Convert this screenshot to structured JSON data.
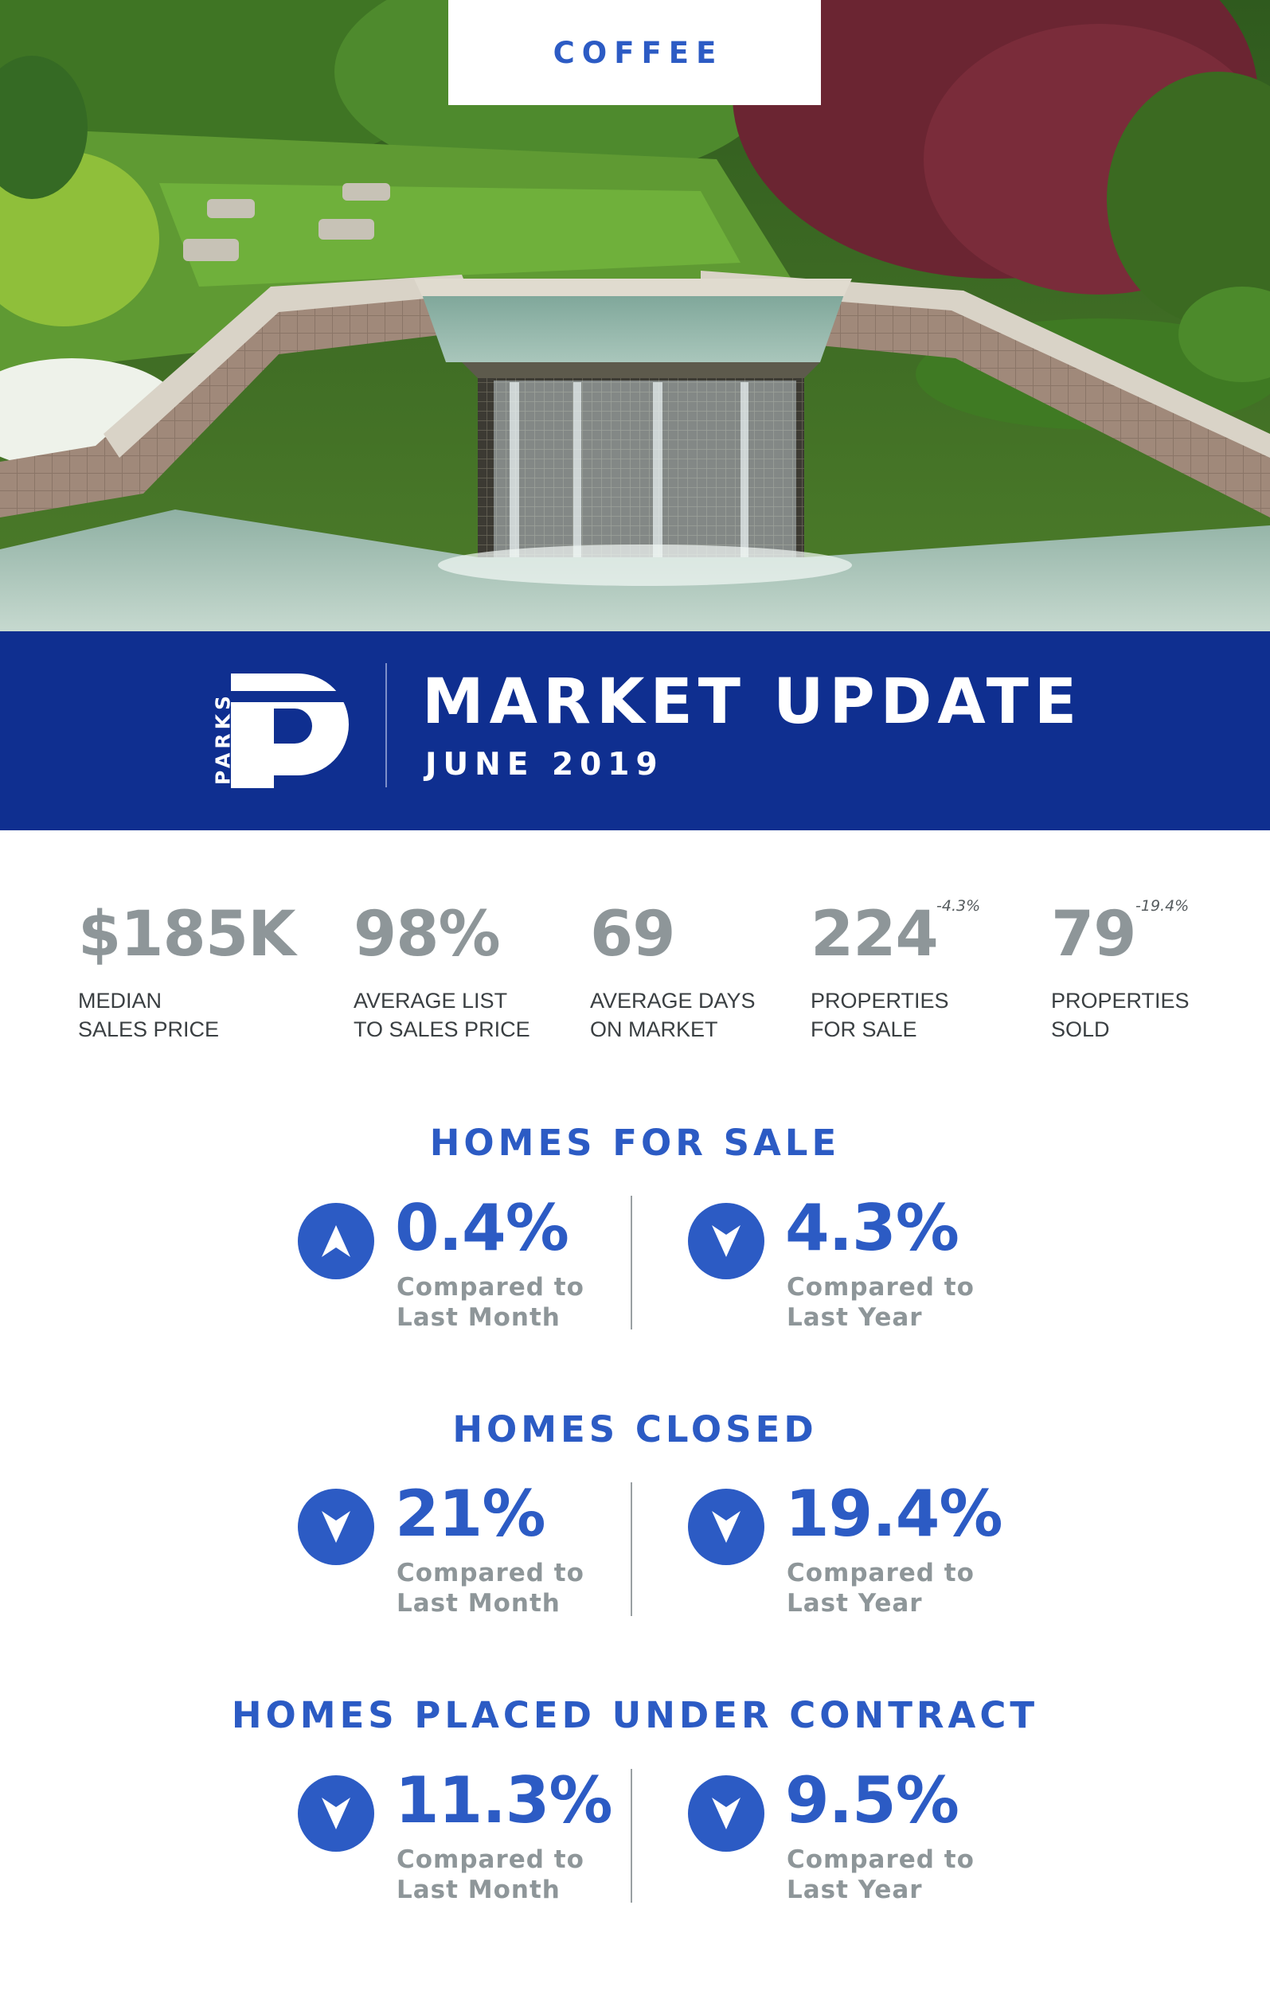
{
  "hero": {
    "region_label": "COFFEE"
  },
  "banner": {
    "brand": "PARKS",
    "title": "MARKET UPDATE",
    "date": "JUNE 2019"
  },
  "stats": [
    {
      "value": "$185K",
      "change": "",
      "label_line1": "MEDIAN",
      "label_line2": "SALES PRICE"
    },
    {
      "value": "98%",
      "change": "",
      "label_line1": "AVERAGE LIST",
      "label_line2": "TO SALES PRICE"
    },
    {
      "value": "69",
      "change": "",
      "label_line1": "AVERAGE DAYS",
      "label_line2": "ON MARKET"
    },
    {
      "value": "224",
      "change": "-4.3%",
      "label_line1": "PROPERTIES",
      "label_line2": "FOR SALE"
    },
    {
      "value": "79",
      "change": "-19.4%",
      "label_line1": "PROPERTIES",
      "label_line2": "SOLD"
    }
  ],
  "sections": [
    {
      "title": "HOMES FOR SALE",
      "left": {
        "direction": "up",
        "value": "0.4%",
        "caption_line1": "Compared to",
        "caption_line2": "Last Month"
      },
      "right": {
        "direction": "down",
        "value": "4.3%",
        "caption_line1": "Compared to",
        "caption_line2": "Last Year"
      }
    },
    {
      "title": "HOMES CLOSED",
      "left": {
        "direction": "down",
        "value": "21%",
        "caption_line1": "Compared to",
        "caption_line2": "Last Month"
      },
      "right": {
        "direction": "down",
        "value": "19.4%",
        "caption_line1": "Compared to",
        "caption_line2": "Last Year"
      }
    },
    {
      "title": "HOMES PLACED UNDER CONTRACT",
      "left": {
        "direction": "down",
        "value": "11.3%",
        "caption_line1": "Compared to",
        "caption_line2": "Last Month"
      },
      "right": {
        "direction": "down",
        "value": "9.5%",
        "caption_line1": "Compared to",
        "caption_line2": "Last Year"
      }
    }
  ],
  "colors": {
    "accent_blue": "#2c5bc4",
    "banner_navy": "#0f2f90",
    "stat_gray": "#8e9699"
  },
  "icons": {
    "up": "arrow-up-icon",
    "down": "arrow-down-icon"
  }
}
